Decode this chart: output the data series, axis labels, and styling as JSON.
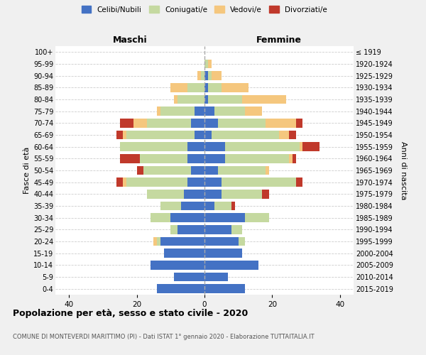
{
  "age_groups": [
    "0-4",
    "5-9",
    "10-14",
    "15-19",
    "20-24",
    "25-29",
    "30-34",
    "35-39",
    "40-44",
    "45-49",
    "50-54",
    "55-59",
    "60-64",
    "65-69",
    "70-74",
    "75-79",
    "80-84",
    "85-89",
    "90-94",
    "95-99",
    "100+"
  ],
  "birth_years": [
    "2015-2019",
    "2010-2014",
    "2005-2009",
    "2000-2004",
    "1995-1999",
    "1990-1994",
    "1985-1989",
    "1980-1984",
    "1975-1979",
    "1970-1974",
    "1965-1969",
    "1960-1964",
    "1955-1959",
    "1950-1954",
    "1945-1949",
    "1940-1944",
    "1935-1939",
    "1930-1934",
    "1925-1929",
    "1920-1924",
    "≤ 1919"
  ],
  "maschi": {
    "celibi": [
      14,
      9,
      16,
      12,
      13,
      8,
      10,
      7,
      6,
      5,
      4,
      5,
      5,
      3,
      4,
      3,
      0,
      0,
      0,
      0,
      0
    ],
    "coniugati": [
      0,
      0,
      0,
      0,
      1,
      2,
      6,
      6,
      11,
      18,
      14,
      14,
      20,
      20,
      13,
      10,
      8,
      5,
      1,
      0,
      0
    ],
    "vedovi": [
      0,
      0,
      0,
      0,
      1,
      0,
      0,
      0,
      0,
      1,
      0,
      0,
      0,
      1,
      4,
      1,
      1,
      5,
      1,
      0,
      0
    ],
    "divorziati": [
      0,
      0,
      0,
      0,
      0,
      0,
      0,
      0,
      0,
      2,
      2,
      6,
      0,
      2,
      4,
      0,
      0,
      0,
      0,
      0,
      0
    ]
  },
  "femmine": {
    "nubili": [
      12,
      7,
      16,
      11,
      10,
      8,
      12,
      3,
      5,
      5,
      4,
      6,
      6,
      2,
      4,
      3,
      1,
      1,
      1,
      0,
      0
    ],
    "coniugate": [
      0,
      0,
      0,
      0,
      2,
      3,
      7,
      5,
      12,
      22,
      14,
      19,
      22,
      20,
      14,
      9,
      10,
      4,
      1,
      1,
      0
    ],
    "vedove": [
      0,
      0,
      0,
      0,
      0,
      0,
      0,
      0,
      0,
      0,
      1,
      1,
      1,
      3,
      9,
      5,
      13,
      8,
      3,
      1,
      0
    ],
    "divorziate": [
      0,
      0,
      0,
      0,
      0,
      0,
      0,
      1,
      2,
      2,
      0,
      1,
      5,
      2,
      2,
      0,
      0,
      0,
      0,
      0,
      0
    ]
  },
  "colors": {
    "celibi": "#4472c4",
    "coniugati": "#c5d9a0",
    "vedovi": "#f5c77e",
    "divorziati": "#c0392b"
  },
  "xlim": 44,
  "title": "Popolazione per età, sesso e stato civile - 2020",
  "subtitle": "COMUNE DI MONTEVERDI MARITTIMO (PI) - Dati ISTAT 1° gennaio 2020 - Elaborazione TUTTAITALIA.IT",
  "ylabel_left": "Fasce di età",
  "ylabel_right": "Anni di nascita",
  "xlabel_left": "Maschi",
  "xlabel_right": "Femmine",
  "bg_color": "#f0f0f0",
  "plot_bg_color": "#ffffff",
  "grid_color": "#cccccc"
}
